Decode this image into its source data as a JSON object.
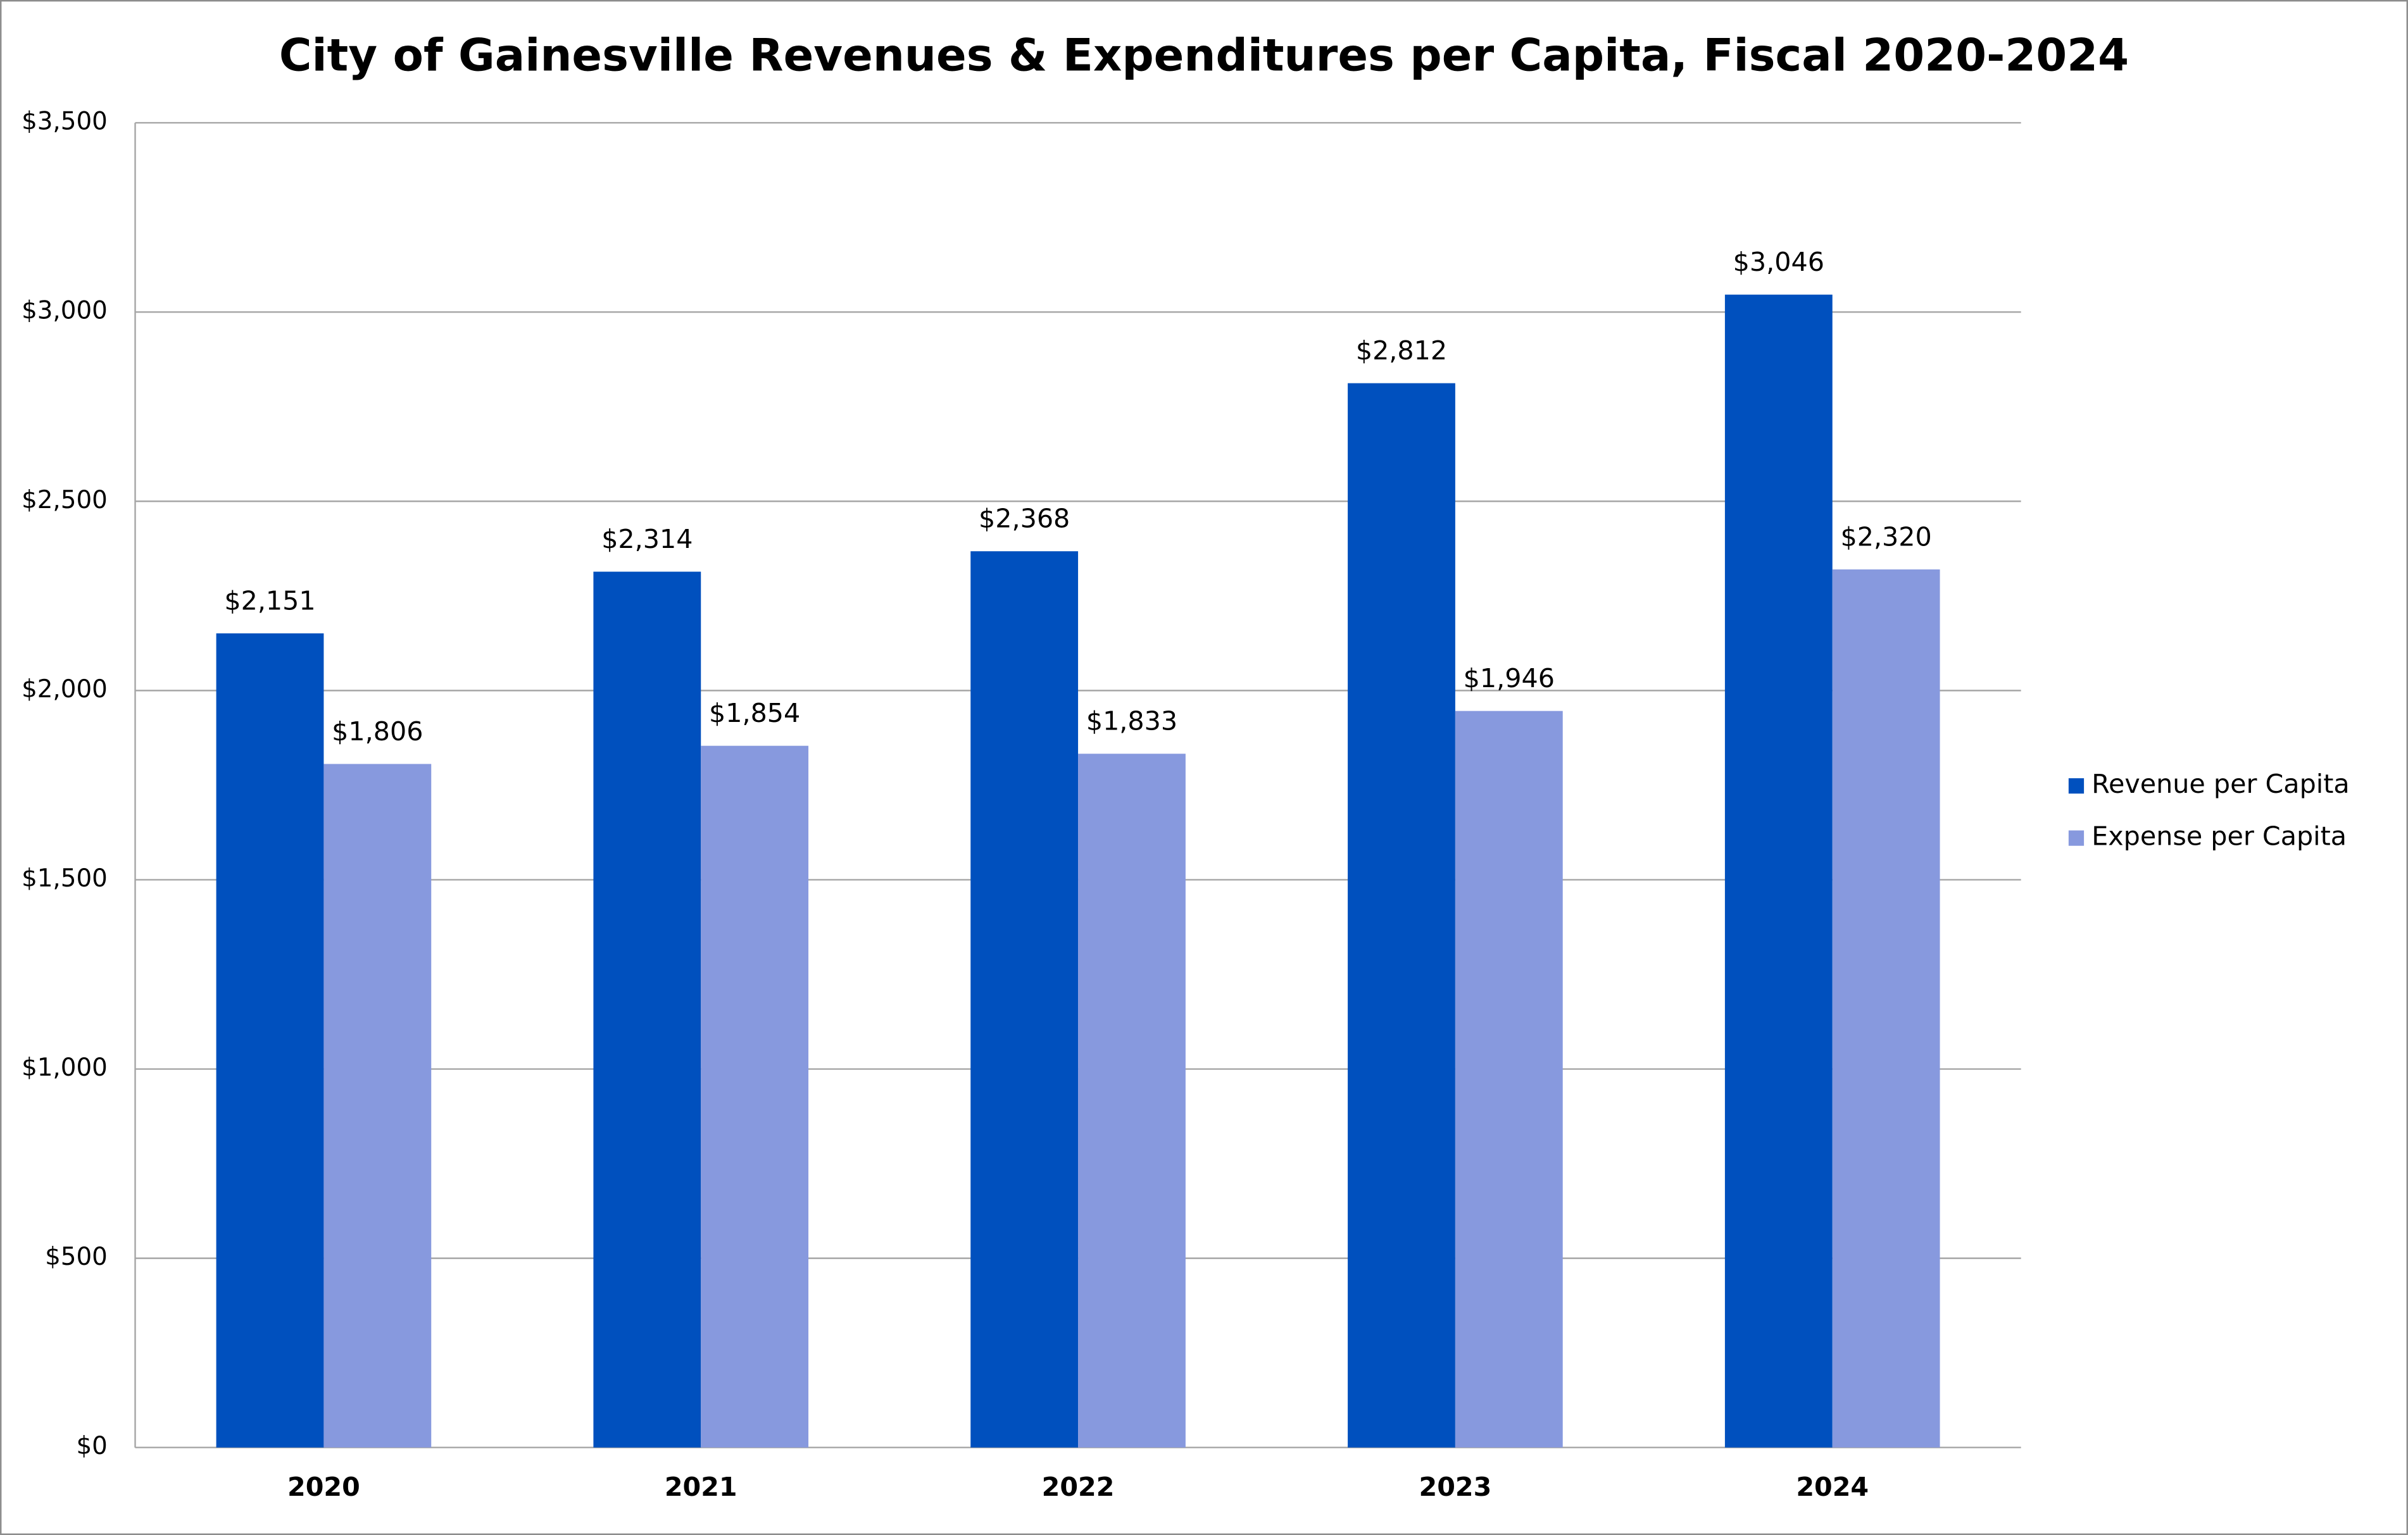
{
  "chart_data": {
    "type": "bar",
    "title": "City of Gainesville Revenues & Expenditures per Capita, Fiscal 2020-2024",
    "categories": [
      "2020",
      "2021",
      "2022",
      "2023",
      "2024"
    ],
    "series": [
      {
        "name": "Revenue per Capita",
        "color": "#0050be",
        "values": [
          2151,
          2314,
          2368,
          2812,
          3046
        ],
        "value_labels": [
          "$2,151",
          "$2,314",
          "$2,368",
          "$2,812",
          "$3,046"
        ]
      },
      {
        "name": "Expense per Capita",
        "color": "#8799de",
        "values": [
          1806,
          1854,
          1833,
          1946,
          2320
        ],
        "value_labels": [
          "$1,806",
          "$1,854",
          "$1,833",
          "$1,946",
          "$2,320"
        ]
      }
    ],
    "ylim": [
      0,
      3500
    ],
    "yticks": [
      {
        "value": 0,
        "label": "$0"
      },
      {
        "value": 500,
        "label": "$500"
      },
      {
        "value": 1000,
        "label": "$1,000"
      },
      {
        "value": 1500,
        "label": "$1,500"
      },
      {
        "value": 2000,
        "label": "$2,000"
      },
      {
        "value": 2500,
        "label": "$2,500"
      },
      {
        "value": 3000,
        "label": "$3,000"
      },
      {
        "value": 3500,
        "label": "$3,500"
      }
    ],
    "grid": true,
    "legend": "right"
  }
}
